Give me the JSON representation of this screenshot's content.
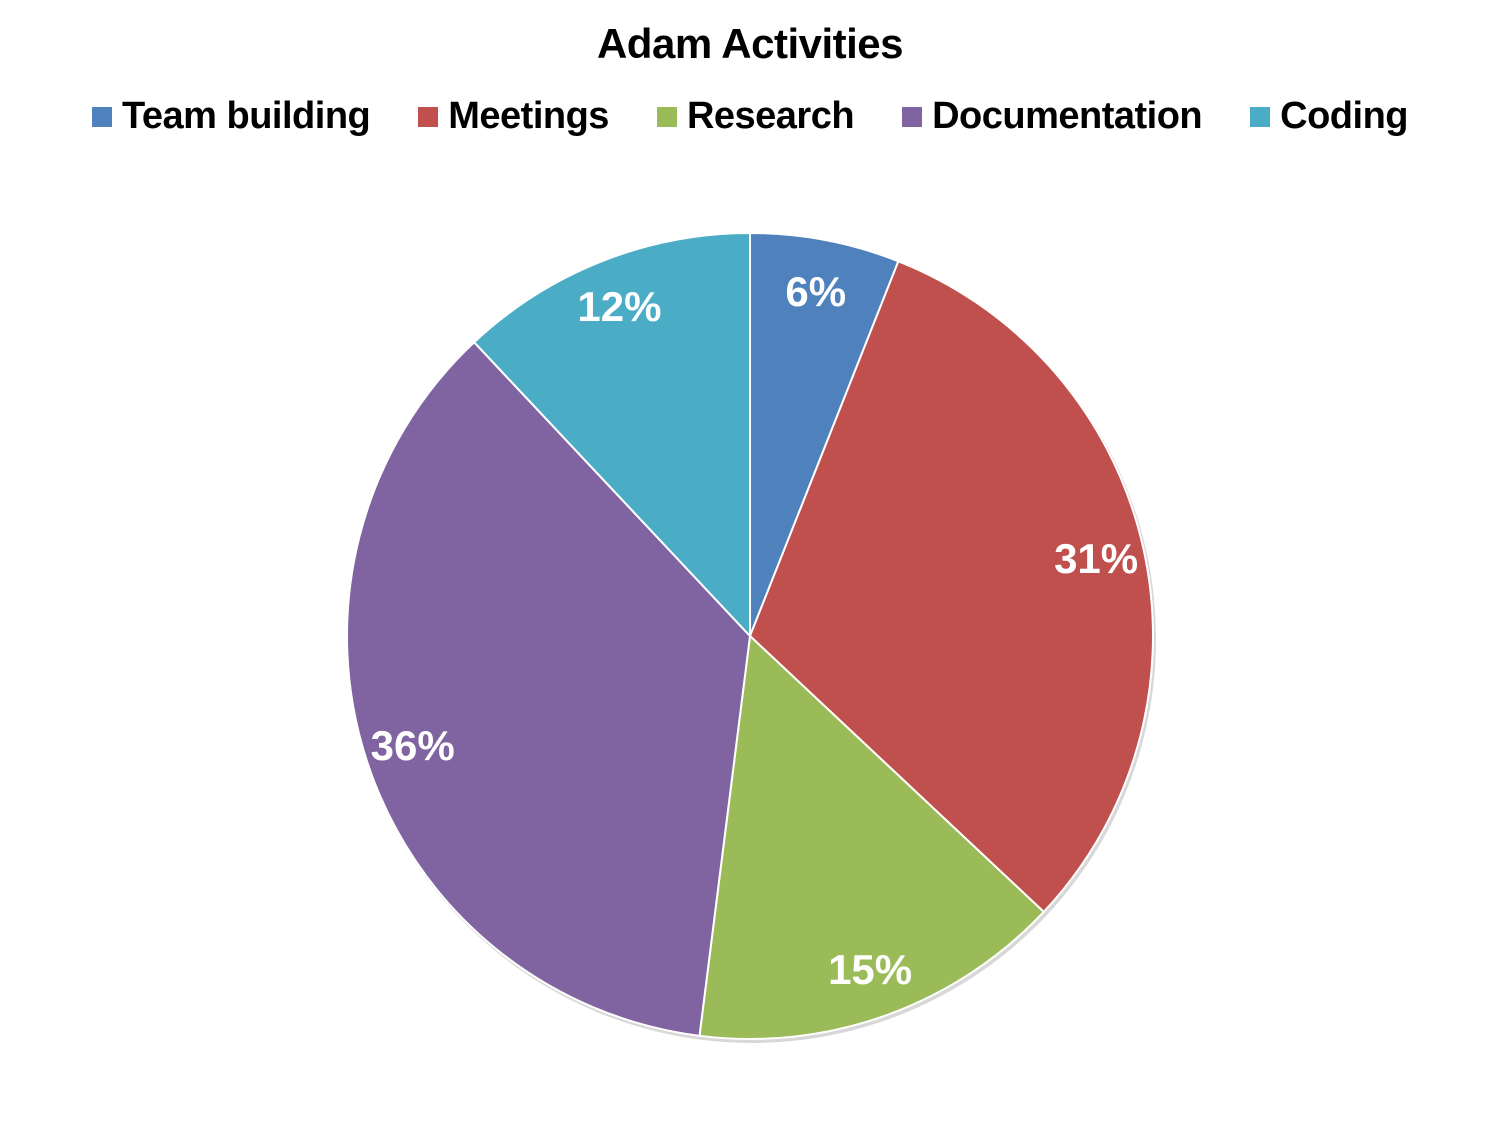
{
  "chart_data": {
    "type": "pie",
    "title": "Adam Activities",
    "legend_position": "top",
    "categories": [
      "Team building",
      "Meetings",
      "Research",
      "Documentation",
      "Coding"
    ],
    "values": [
      6,
      31,
      15,
      36,
      12
    ],
    "data_labels": [
      "6%",
      "31%",
      "15%",
      "36%",
      "12%"
    ],
    "colors": [
      "#4F81BD",
      "#C0504D",
      "#9BBB59",
      "#8064A2",
      "#4BACC6"
    ]
  }
}
